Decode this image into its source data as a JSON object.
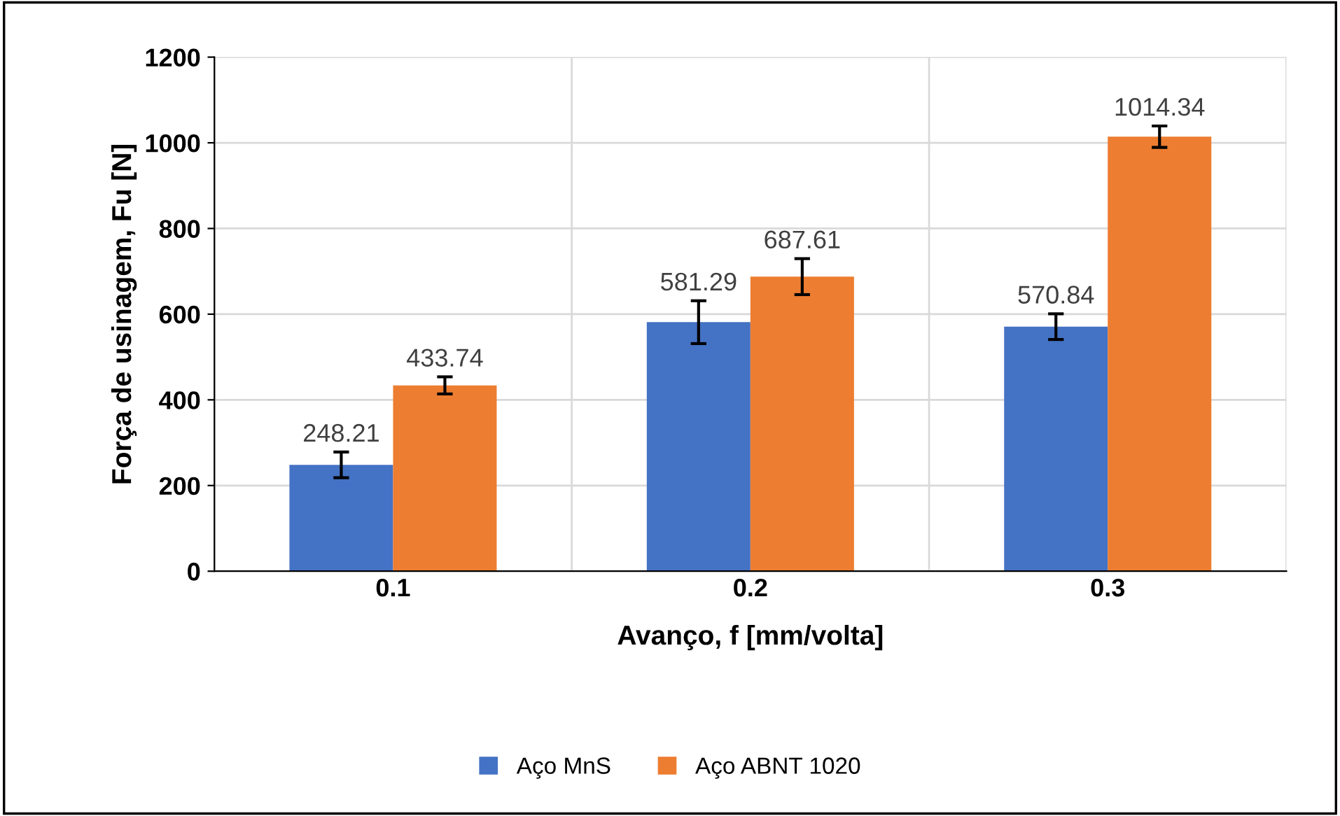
{
  "chart_data": {
    "type": "bar",
    "xlabel": "Avanço, f [mm/volta]",
    "ylabel": "Força de usinagem, Fu [N]",
    "categories": [
      "0.1",
      "0.2",
      "0.3"
    ],
    "series": [
      {
        "name": "Aço MnS",
        "color": "#4472c4",
        "values": [
          248.21,
          581.29,
          570.84
        ],
        "errors": [
          30,
          50,
          30
        ]
      },
      {
        "name": "Aço ABNT 1020",
        "color": "#ed7d31",
        "values": [
          433.74,
          687.61,
          1014.34
        ],
        "errors": [
          20,
          42,
          25
        ]
      }
    ],
    "ylim": [
      0,
      1200
    ],
    "yticks": [
      0,
      200,
      400,
      600,
      800,
      1000,
      1200
    ],
    "grid": true,
    "legend": "bottom",
    "data_labels": true
  }
}
